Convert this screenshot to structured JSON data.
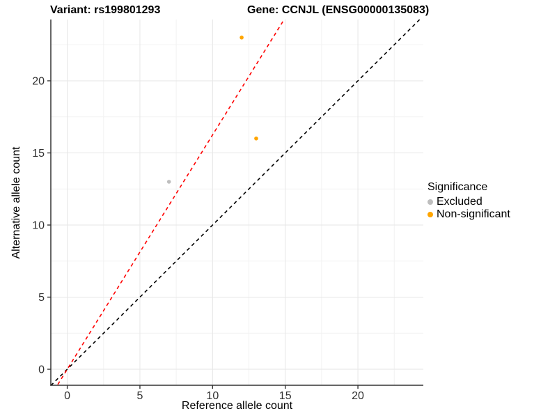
{
  "titles": {
    "left": "Variant: rs199801293",
    "right": "Gene: CCNJL (ENSG00000135083)"
  },
  "chart_data": {
    "type": "scatter",
    "xlabel": "Reference allele count",
    "ylabel": "Alternative allele count",
    "xlim": [
      -1.13,
      24.5
    ],
    "ylim": [
      -1.11,
      24.25
    ],
    "xticks": [
      0,
      5,
      10,
      15,
      20
    ],
    "yticks": [
      0,
      5,
      10,
      15,
      20
    ],
    "grid": {
      "major": true,
      "minor": true
    },
    "series": [
      {
        "name": "Excluded",
        "color": "#BEBEBE",
        "points": [
          {
            "x": 7,
            "y": 13
          }
        ]
      },
      {
        "name": "Non-significant",
        "color": "#FFA500",
        "points": [
          {
            "x": 12,
            "y": 23
          },
          {
            "x": 13,
            "y": 16
          }
        ]
      }
    ],
    "lines": [
      {
        "name": "identity-line",
        "color": "#000000",
        "style": "dashed",
        "slope": 1,
        "intercept": 0
      },
      {
        "name": "allelic-ratio-line",
        "color": "#FF0000",
        "style": "dashed",
        "slope": 1.625,
        "intercept": 0
      }
    ],
    "legend": {
      "title": "Significance",
      "position": "right",
      "entries": [
        {
          "label": "Excluded",
          "color": "#BEBEBE"
        },
        {
          "label": "Non-significant",
          "color": "#FFA500"
        }
      ]
    },
    "colors": {
      "axis": "#333333",
      "tick_label": "#303030",
      "grid_major": "#E6E6E6",
      "grid_minor": "#F2F2F2"
    }
  }
}
